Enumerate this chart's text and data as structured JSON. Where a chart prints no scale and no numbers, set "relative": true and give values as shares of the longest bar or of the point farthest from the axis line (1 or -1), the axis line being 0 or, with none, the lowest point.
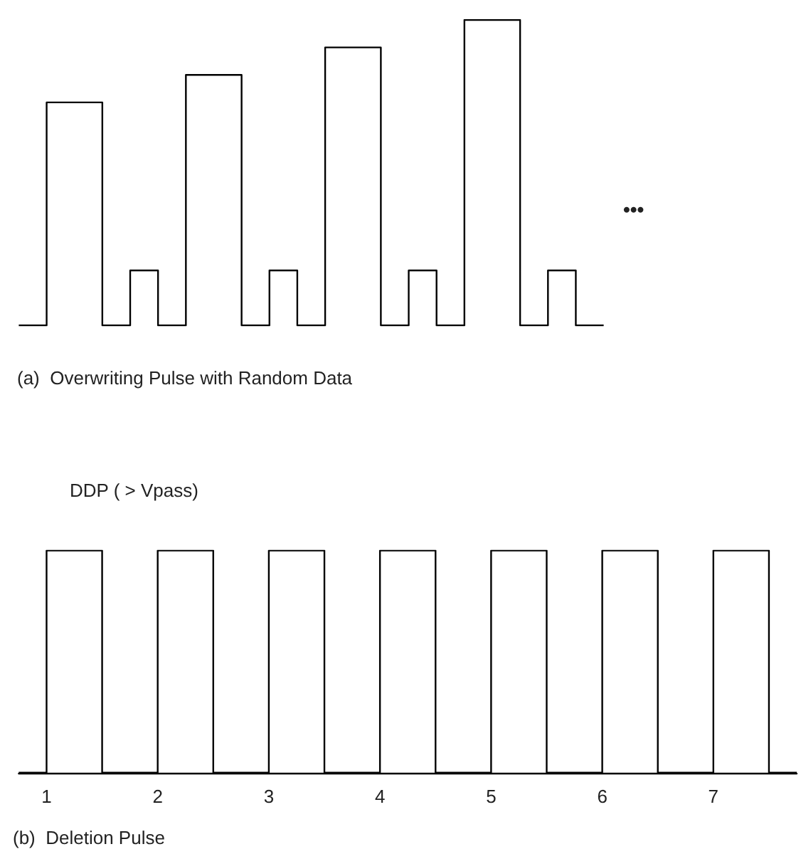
{
  "chart_data": [
    {
      "type": "step",
      "title": "(a)  Overwriting Pulse with Random Data",
      "relative": true,
      "annotations": [
        "•••"
      ],
      "categories": [
        null,
        null,
        null,
        null,
        null,
        null,
        null,
        null,
        null,
        null,
        null,
        null,
        null,
        null,
        null,
        null,
        null,
        null,
        null,
        null,
        null,
        null
      ],
      "values": [
        0,
        0.73,
        0.73,
        0,
        0.18,
        0,
        0.82,
        0.82,
        0,
        0.18,
        0,
        0.91,
        0.91,
        0,
        0.18,
        0,
        1,
        1,
        0,
        0.18,
        0,
        0
      ],
      "color": "#000000",
      "marker": "none",
      "line_style": "solid"
    },
    {
      "type": "step",
      "title": "(b)  Deletion Pulse",
      "relative": true,
      "annotations": [
        "DDP ( > Vpass)"
      ],
      "x": [
        0.75,
        1,
        1.5,
        2,
        2.5,
        3,
        3.5,
        4,
        4.5,
        5,
        5.5,
        6,
        6.5,
        7,
        7.5,
        7.75
      ],
      "values": [
        0,
        1,
        0,
        1,
        0,
        1,
        0,
        1,
        0,
        1,
        0,
        1,
        0,
        1,
        0,
        0
      ],
      "color": "#000000",
      "marker": "none",
      "line_style": "solid",
      "xlim": [
        0.75,
        7.75
      ],
      "xticks": [
        1,
        2,
        3,
        4,
        5,
        6,
        7
      ],
      "tick_labels": "x"
    }
  ]
}
